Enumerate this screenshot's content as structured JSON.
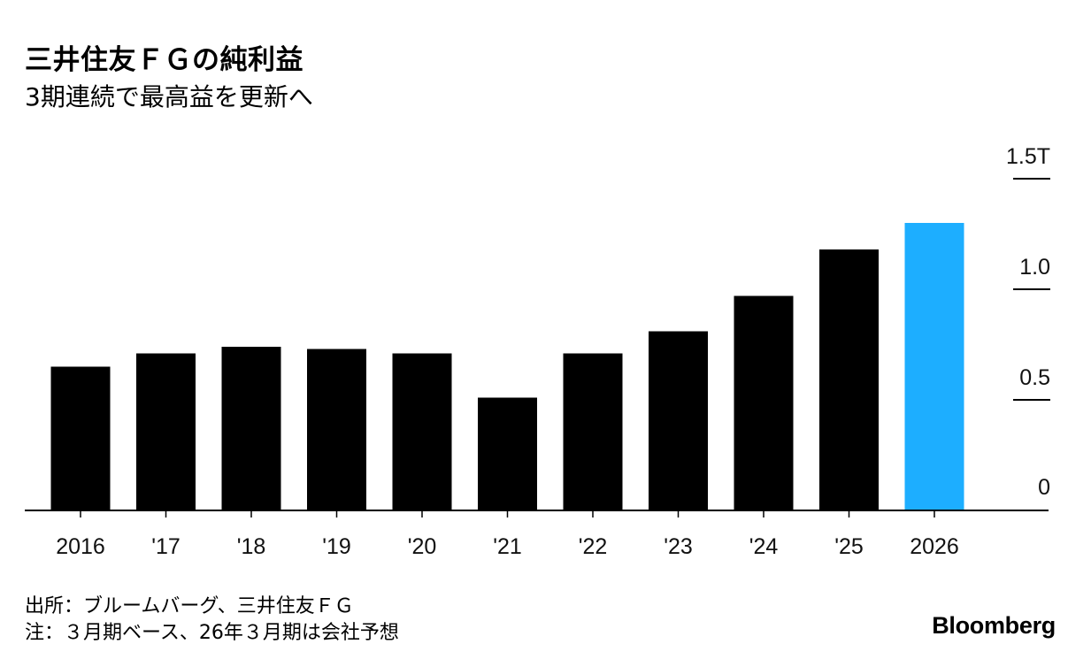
{
  "header": {
    "title": "三井住友ＦＧの純利益",
    "subtitle": "3期連続で最高益を更新へ"
  },
  "footer": {
    "source": "出所：ブルームバーグ、三井住友ＦＧ",
    "note": "注：３月期ベース、26年３月期は会社予想",
    "brand": "Bloomberg"
  },
  "colors": {
    "bar": "#000000",
    "highlight": "#1DAEFF",
    "axis": "#000000"
  },
  "chart_data": {
    "type": "bar",
    "title": "三井住友ＦＧの純利益",
    "subtitle": "3期連続で最高益を更新へ",
    "categories": [
      "2016",
      "'17",
      "'18",
      "'19",
      "'20",
      "'21",
      "'22",
      "'23",
      "'24",
      "'25",
      "2026"
    ],
    "values": [
      0.65,
      0.71,
      0.74,
      0.73,
      0.71,
      0.51,
      0.71,
      0.81,
      0.97,
      1.18,
      1.3
    ],
    "highlight_index": 10,
    "ylim": [
      0,
      1.5
    ],
    "yticks": [
      {
        "value": 0,
        "label": "0"
      },
      {
        "value": 0.5,
        "label": "0.5"
      },
      {
        "value": 1.0,
        "label": "1.0"
      },
      {
        "value": 1.5,
        "label": "1.5T"
      }
    ],
    "y_axis_position": "right",
    "xlabel": "",
    "ylabel": "",
    "grid": false,
    "legend": "none"
  }
}
